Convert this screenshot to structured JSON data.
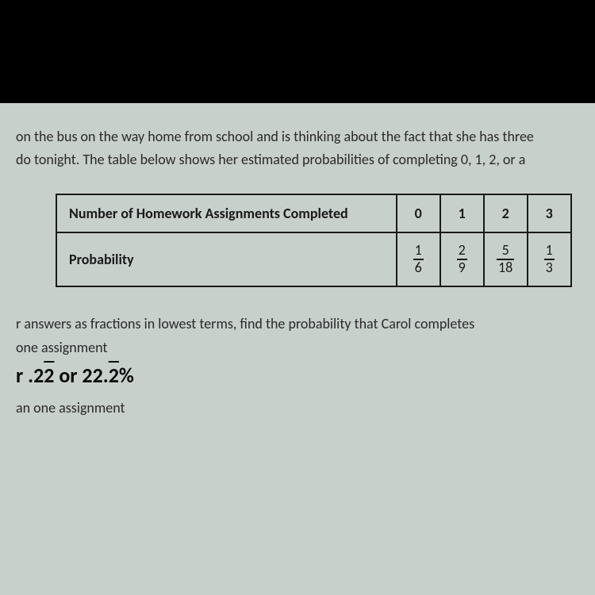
{
  "paragraph": {
    "line1": "on the bus on the way home from school and is thinking about the fact that she has three",
    "line2": "do tonight.  The table below shows her estimated probabilities of completing 0, 1, 2, or a"
  },
  "table": {
    "row_header1": "Number of Homework Assignments Completed",
    "row_header2": "Probability",
    "columns": [
      "0",
      "1",
      "2",
      "3"
    ],
    "fractions": [
      {
        "num": "1",
        "den": "6"
      },
      {
        "num": "2",
        "den": "9"
      },
      {
        "num": "5",
        "den": "18"
      },
      {
        "num": "1",
        "den": "3"
      }
    ],
    "border_color": "#1a1a1a",
    "text_color": "#1a1a1a"
  },
  "question": {
    "prompt": "r answers as fractions in lowest terms, find the probability that Carol completes",
    "part_a": "one assignment",
    "answer_a_prefix": "r .2",
    "answer_a_rep1": "2",
    "answer_a_mid": " or 22.",
    "answer_a_rep2": "2",
    "answer_a_suffix": "%",
    "part_b": "an one assignment"
  },
  "colors": {
    "page_bg": "#c8d0cc",
    "frame_bg": "#000000",
    "text": "#2a2a2a",
    "answer_text": "#0a0a0a"
  },
  "typography": {
    "body_fontsize": 18,
    "answer_fontsize": 26
  }
}
